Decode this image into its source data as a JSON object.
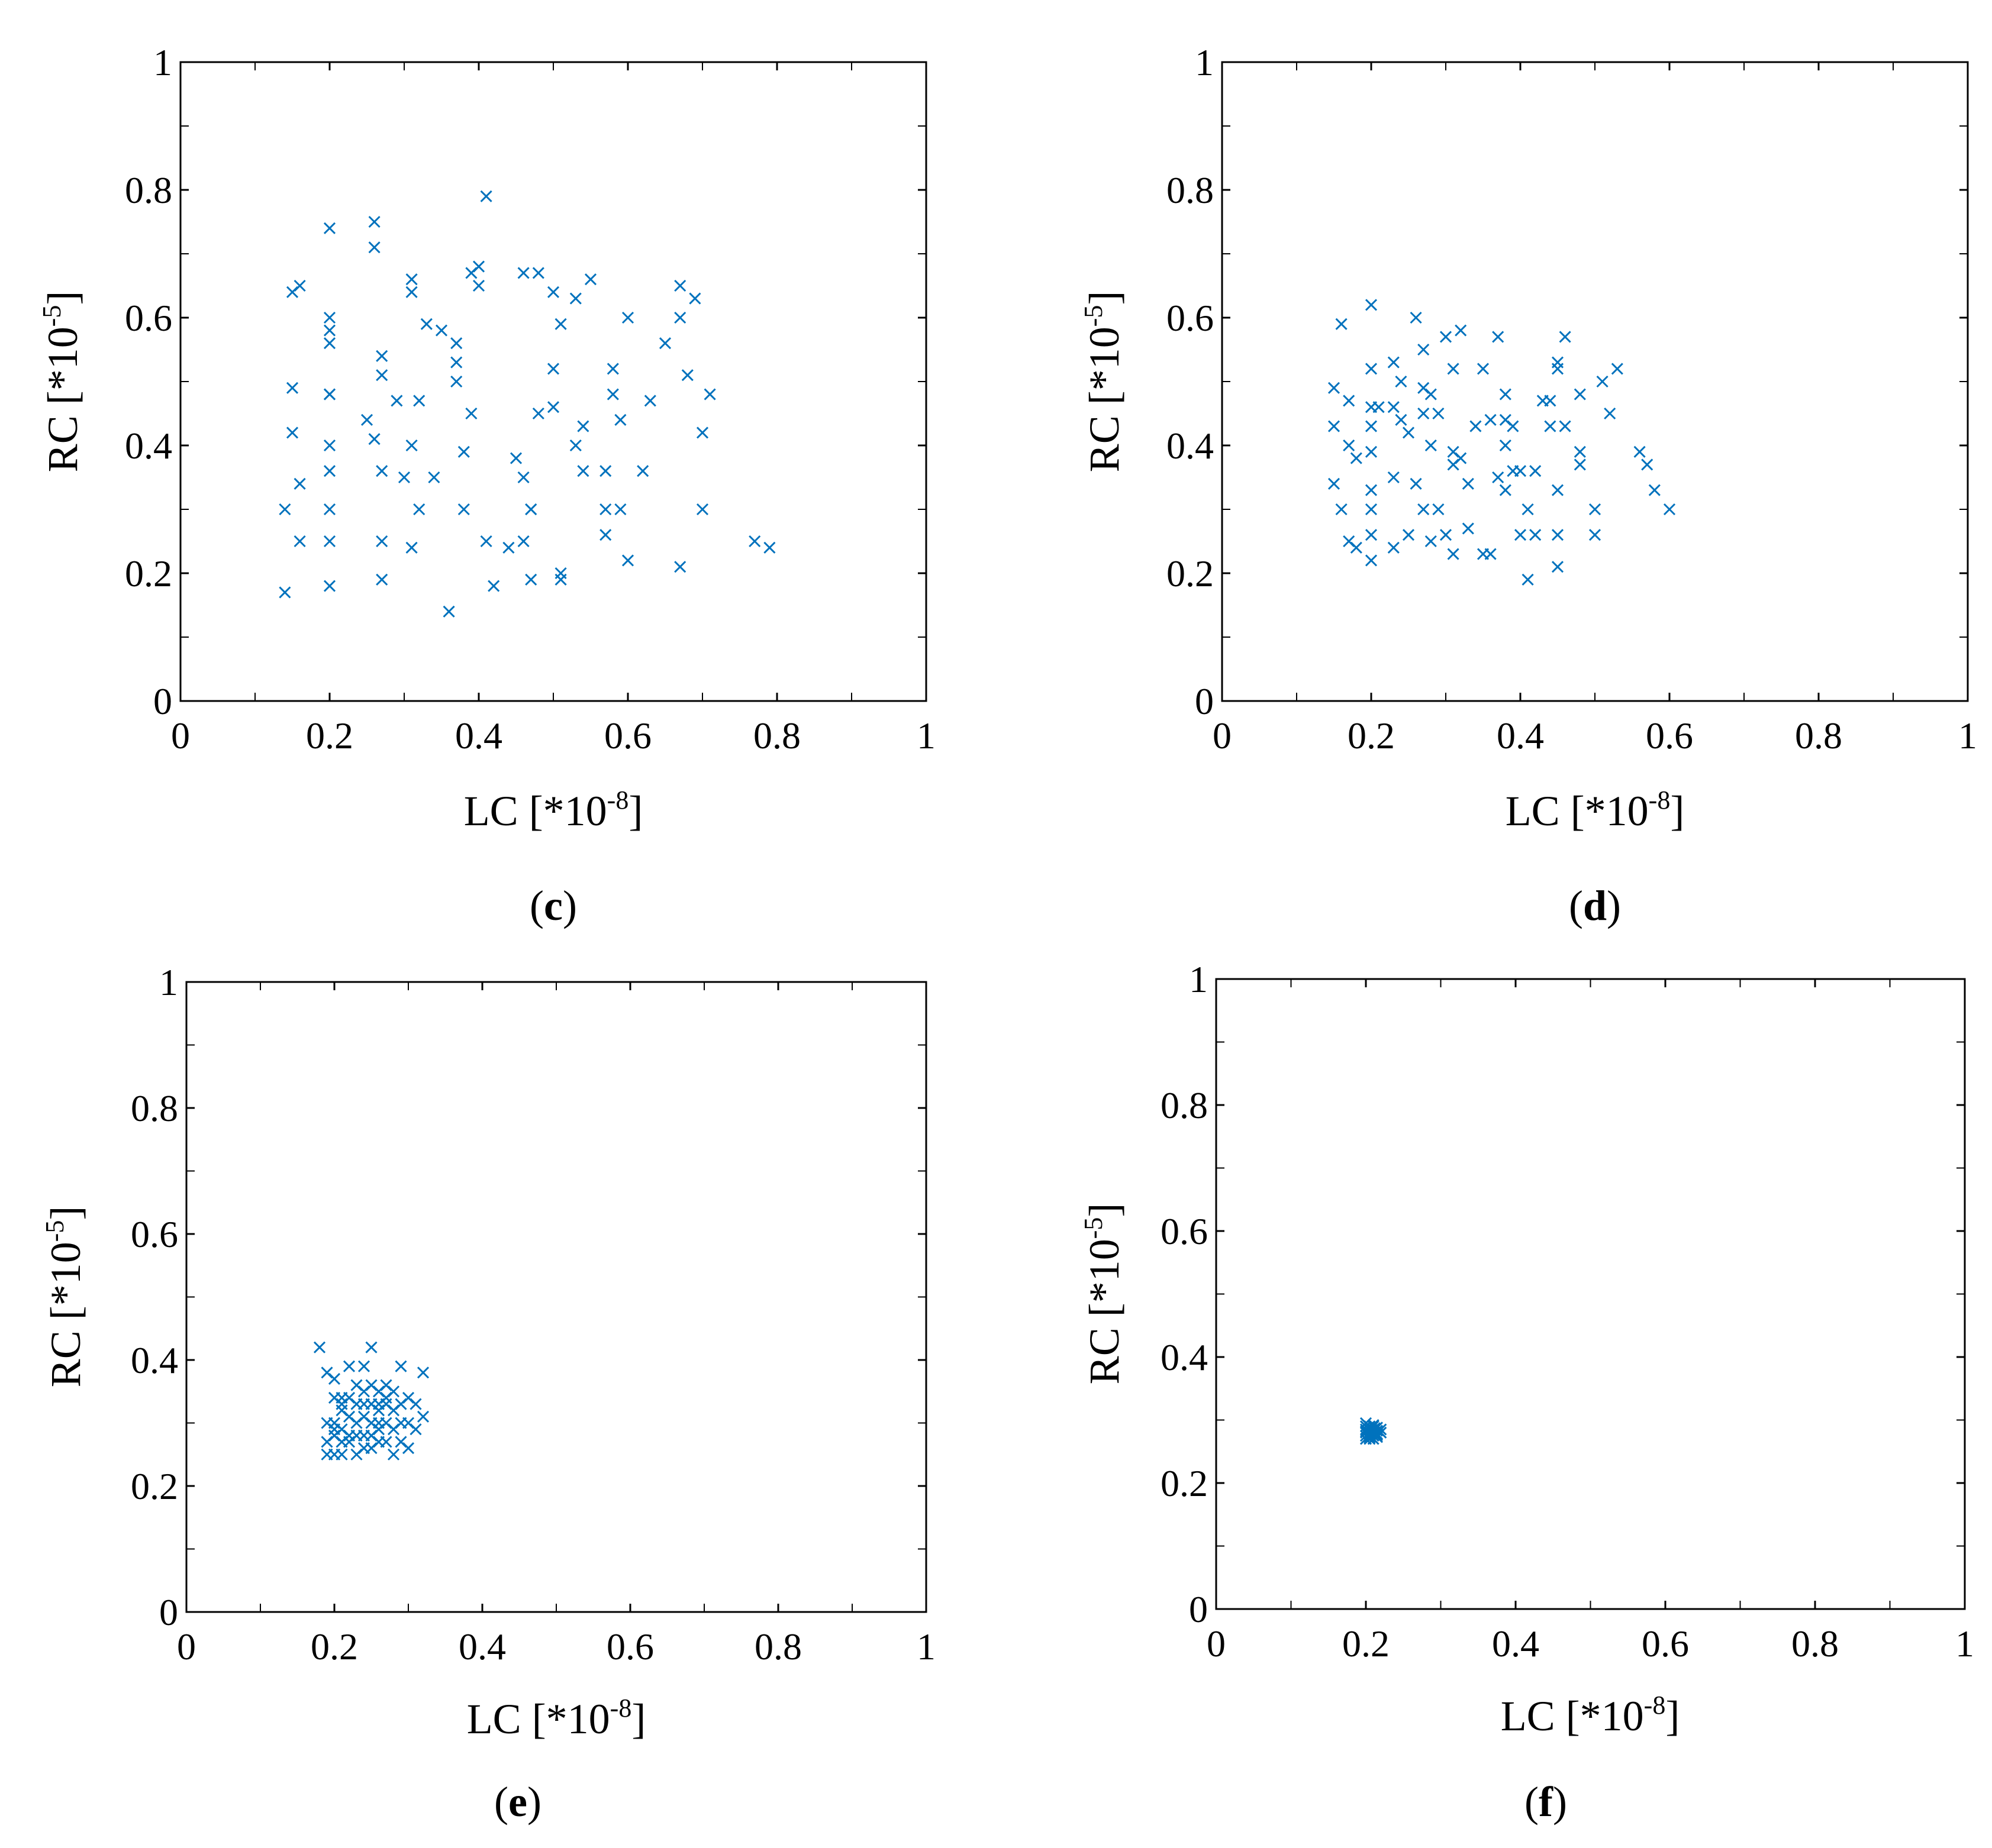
{
  "marker_color": "#0072BD",
  "axis_color": "#000000",
  "chart_data": [
    {
      "type": "scatter",
      "panel": "c",
      "xlabel_base": "LC [*10",
      "xlabel_exp": "-8",
      "xlabel_close": "]",
      "ylabel_base": "RC [*10",
      "ylabel_exp": "-5",
      "ylabel_close": "]",
      "xlim": [
        0,
        1
      ],
      "ylim": [
        0,
        1
      ],
      "xticks": [
        "0",
        "0.2",
        "0.4",
        "0.6",
        "0.8",
        "1"
      ],
      "yticks": [
        "0",
        "0.2",
        "0.4",
        "0.6",
        "0.8",
        "1"
      ],
      "x": [
        0.14,
        0.14,
        0.15,
        0.15,
        0.15,
        0.16,
        0.16,
        0.16,
        0.2,
        0.2,
        0.2,
        0.2,
        0.2,
        0.2,
        0.2,
        0.2,
        0.2,
        0.2,
        0.2,
        0.25,
        0.26,
        0.26,
        0.26,
        0.27,
        0.27,
        0.27,
        0.27,
        0.27,
        0.29,
        0.3,
        0.31,
        0.31,
        0.31,
        0.31,
        0.32,
        0.32,
        0.33,
        0.34,
        0.35,
        0.36,
        0.37,
        0.37,
        0.37,
        0.38,
        0.38,
        0.39,
        0.39,
        0.4,
        0.4,
        0.41,
        0.41,
        0.42,
        0.44,
        0.45,
        0.46,
        0.46,
        0.46,
        0.47,
        0.47,
        0.47,
        0.48,
        0.48,
        0.5,
        0.5,
        0.5,
        0.51,
        0.51,
        0.51,
        0.53,
        0.53,
        0.54,
        0.54,
        0.55,
        0.57,
        0.57,
        0.57,
        0.58,
        0.58,
        0.59,
        0.59,
        0.6,
        0.6,
        0.62,
        0.63,
        0.65,
        0.67,
        0.67,
        0.67,
        0.68,
        0.69,
        0.7,
        0.7,
        0.71,
        0.77,
        0.79
      ],
      "y": [
        0.3,
        0.17,
        0.49,
        0.42,
        0.64,
        0.65,
        0.34,
        0.25,
        0.74,
        0.58,
        0.56,
        0.48,
        0.4,
        0.36,
        0.3,
        0.25,
        0.18,
        0.6,
        0.48,
        0.44,
        0.71,
        0.75,
        0.41,
        0.54,
        0.51,
        0.36,
        0.25,
        0.19,
        0.47,
        0.35,
        0.66,
        0.64,
        0.4,
        0.24,
        0.47,
        0.3,
        0.59,
        0.35,
        0.58,
        0.14,
        0.56,
        0.53,
        0.5,
        0.39,
        0.3,
        0.45,
        0.67,
        0.68,
        0.65,
        0.79,
        0.25,
        0.18,
        0.24,
        0.38,
        0.35,
        0.67,
        0.25,
        0.3,
        0.3,
        0.19,
        0.45,
        0.67,
        0.64,
        0.52,
        0.46,
        0.59,
        0.19,
        0.2,
        0.63,
        0.4,
        0.43,
        0.36,
        0.66,
        0.36,
        0.3,
        0.26,
        0.52,
        0.48,
        0.44,
        0.3,
        0.22,
        0.6,
        0.36,
        0.47,
        0.56,
        0.65,
        0.6,
        0.21,
        0.51,
        0.63,
        0.42,
        0.3,
        0.48,
        0.25,
        0.24
      ]
    },
    {
      "type": "scatter",
      "panel": "d",
      "xlabel_base": "LC [*10",
      "xlabel_exp": "-8",
      "xlabel_close": "]",
      "ylabel_base": "RC [*10",
      "ylabel_exp": "-5",
      "ylabel_close": "]",
      "xlim": [
        0,
        1
      ],
      "ylim": [
        0,
        1
      ],
      "xticks": [
        "0",
        "0.2",
        "0.4",
        "0.6",
        "0.8",
        "1"
      ],
      "yticks": [
        "0",
        "0.2",
        "0.4",
        "0.6",
        "0.8",
        "1"
      ],
      "x": [
        0.15,
        0.15,
        0.15,
        0.16,
        0.16,
        0.17,
        0.17,
        0.17,
        0.18,
        0.18,
        0.2,
        0.2,
        0.2,
        0.2,
        0.2,
        0.2,
        0.2,
        0.2,
        0.2,
        0.23,
        0.23,
        0.23,
        0.23,
        0.24,
        0.24,
        0.25,
        0.25,
        0.26,
        0.26,
        0.27,
        0.27,
        0.27,
        0.28,
        0.28,
        0.28,
        0.29,
        0.29,
        0.3,
        0.3,
        0.31,
        0.31,
        0.31,
        0.32,
        0.32,
        0.33,
        0.33,
        0.34,
        0.35,
        0.35,
        0.36,
        0.36,
        0.37,
        0.37,
        0.38,
        0.38,
        0.38,
        0.38,
        0.39,
        0.39,
        0.4,
        0.4,
        0.41,
        0.41,
        0.42,
        0.42,
        0.43,
        0.44,
        0.44,
        0.45,
        0.45,
        0.45,
        0.45,
        0.45,
        0.46,
        0.46,
        0.48,
        0.48,
        0.48,
        0.5,
        0.5,
        0.51,
        0.52,
        0.53,
        0.56,
        0.57,
        0.58,
        0.6,
        0.31,
        0.27,
        0.21
      ],
      "y": [
        0.49,
        0.43,
        0.34,
        0.59,
        0.3,
        0.47,
        0.4,
        0.25,
        0.38,
        0.24,
        0.62,
        0.52,
        0.46,
        0.43,
        0.39,
        0.33,
        0.3,
        0.26,
        0.22,
        0.53,
        0.46,
        0.35,
        0.24,
        0.5,
        0.44,
        0.42,
        0.26,
        0.6,
        0.34,
        0.55,
        0.45,
        0.3,
        0.48,
        0.4,
        0.25,
        0.45,
        0.3,
        0.26,
        0.57,
        0.52,
        0.39,
        0.23,
        0.58,
        0.38,
        0.34,
        0.27,
        0.43,
        0.52,
        0.23,
        0.44,
        0.23,
        0.57,
        0.35,
        0.48,
        0.44,
        0.33,
        0.4,
        0.43,
        0.36,
        0.26,
        0.36,
        0.3,
        0.19,
        0.36,
        0.26,
        0.47,
        0.47,
        0.43,
        0.53,
        0.52,
        0.33,
        0.26,
        0.21,
        0.57,
        0.43,
        0.48,
        0.39,
        0.37,
        0.3,
        0.26,
        0.5,
        0.45,
        0.52,
        0.39,
        0.37,
        0.33,
        0.3,
        0.37,
        0.49,
        0.46
      ]
    },
    {
      "type": "scatter",
      "panel": "e",
      "xlabel_base": "LC [*10",
      "xlabel_exp": "-8",
      "xlabel_close": "]",
      "ylabel_base": "RC [*10",
      "ylabel_exp": "-5",
      "ylabel_close": "]",
      "xlim": [
        0,
        1
      ],
      "ylim": [
        0,
        1
      ],
      "xticks": [
        "0",
        "0.2",
        "0.4",
        "0.6",
        "0.8",
        "1"
      ],
      "yticks": [
        "0",
        "0.2",
        "0.4",
        "0.6",
        "0.8",
        "1"
      ],
      "x": [
        0.18,
        0.19,
        0.19,
        0.19,
        0.19,
        0.2,
        0.2,
        0.2,
        0.2,
        0.2,
        0.21,
        0.21,
        0.21,
        0.21,
        0.21,
        0.22,
        0.22,
        0.22,
        0.22,
        0.23,
        0.23,
        0.23,
        0.23,
        0.23,
        0.24,
        0.24,
        0.24,
        0.24,
        0.24,
        0.25,
        0.25,
        0.25,
        0.25,
        0.25,
        0.25,
        0.26,
        0.26,
        0.26,
        0.26,
        0.26,
        0.27,
        0.27,
        0.27,
        0.27,
        0.28,
        0.28,
        0.28,
        0.28,
        0.29,
        0.29,
        0.29,
        0.3,
        0.3,
        0.3,
        0.31,
        0.31,
        0.32,
        0.32,
        0.2,
        0.22,
        0.24,
        0.26,
        0.27,
        0.29,
        0.21
      ],
      "y": [
        0.42,
        0.38,
        0.3,
        0.27,
        0.25,
        0.37,
        0.34,
        0.3,
        0.28,
        0.25,
        0.34,
        0.32,
        0.29,
        0.27,
        0.33,
        0.39,
        0.34,
        0.31,
        0.27,
        0.36,
        0.33,
        0.3,
        0.28,
        0.25,
        0.39,
        0.35,
        0.31,
        0.28,
        0.26,
        0.42,
        0.36,
        0.33,
        0.3,
        0.28,
        0.26,
        0.35,
        0.32,
        0.3,
        0.27,
        0.33,
        0.36,
        0.33,
        0.3,
        0.27,
        0.35,
        0.32,
        0.29,
        0.25,
        0.39,
        0.33,
        0.27,
        0.34,
        0.3,
        0.26,
        0.33,
        0.29,
        0.38,
        0.31,
        0.29,
        0.28,
        0.33,
        0.29,
        0.34,
        0.3,
        0.25
      ]
    },
    {
      "type": "scatter",
      "panel": "f",
      "xlabel_base": "LC [*10",
      "xlabel_exp": "-8",
      "xlabel_close": "]",
      "ylabel_base": "RC [*10",
      "ylabel_exp": "-5",
      "ylabel_close": "]",
      "xlim": [
        0,
        1
      ],
      "ylim": [
        0,
        1
      ],
      "xticks": [
        "0",
        "0.2",
        "0.4",
        "0.6",
        "0.8",
        "1"
      ],
      "yticks": [
        "0",
        "0.2",
        "0.4",
        "0.6",
        "0.8",
        "1"
      ],
      "x": [
        0.2,
        0.2,
        0.2,
        0.2,
        0.2,
        0.205,
        0.205,
        0.205,
        0.205,
        0.205,
        0.21,
        0.21,
        0.21,
        0.21,
        0.21,
        0.215,
        0.215,
        0.215,
        0.215,
        0.22,
        0.22,
        0.2,
        0.205,
        0.21,
        0.215,
        0.21,
        0.2,
        0.205,
        0.212,
        0.208
      ],
      "y": [
        0.29,
        0.285,
        0.28,
        0.275,
        0.27,
        0.29,
        0.285,
        0.28,
        0.275,
        0.27,
        0.29,
        0.285,
        0.28,
        0.275,
        0.27,
        0.288,
        0.283,
        0.278,
        0.273,
        0.285,
        0.28,
        0.282,
        0.277,
        0.292,
        0.276,
        0.283,
        0.295,
        0.272,
        0.287,
        0.279
      ]
    }
  ]
}
